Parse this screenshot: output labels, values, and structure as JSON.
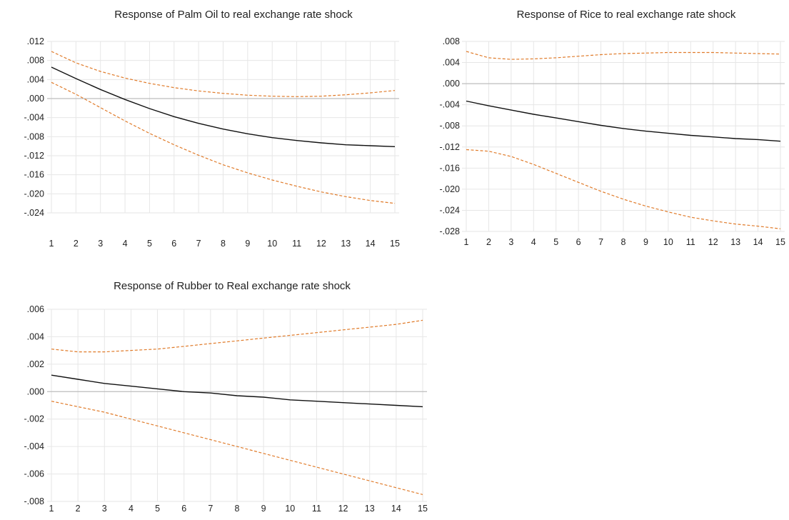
{
  "chart_data": [
    {
      "type": "line",
      "title": "Response of Palm Oil to real exchange rate shock",
      "x": [
        1,
        2,
        3,
        4,
        5,
        6,
        7,
        8,
        9,
        10,
        11,
        12,
        13,
        14,
        15
      ],
      "ylim": [
        -0.024,
        0.012
      ],
      "yticks": [
        ".012",
        ".008",
        ".004",
        ".000",
        "-.004",
        "-.008",
        "-.012",
        "-.016",
        "-.020",
        "-.024"
      ],
      "ytick_values": [
        0.012,
        0.008,
        0.004,
        0.0,
        -0.004,
        -0.008,
        -0.012,
        -0.016,
        -0.02,
        -0.024
      ],
      "series": [
        {
          "role": "response",
          "color": "#111111",
          "values": [
            0.0066,
            0.0042,
            0.0019,
            -0.0002,
            -0.0021,
            -0.0038,
            -0.0052,
            -0.0064,
            -0.0074,
            -0.0082,
            -0.0088,
            -0.0093,
            -0.0097,
            -0.0099,
            -0.0101
          ]
        },
        {
          "role": "upper",
          "color": "#e07b2a",
          "values": [
            0.0099,
            0.0075,
            0.0057,
            0.0043,
            0.0032,
            0.0023,
            0.0016,
            0.0011,
            0.0007,
            0.0005,
            0.0004,
            0.0005,
            0.0008,
            0.0012,
            0.0017
          ]
        },
        {
          "role": "lower",
          "color": "#e07b2a",
          "values": [
            0.0034,
            0.0009,
            -0.0019,
            -0.0047,
            -0.0073,
            -0.0097,
            -0.0119,
            -0.0139,
            -0.0156,
            -0.0171,
            -0.0184,
            -0.0196,
            -0.0206,
            -0.0214,
            -0.022
          ]
        }
      ]
    },
    {
      "type": "line",
      "title": "Response of Rice to real exchange rate shock",
      "x": [
        1,
        2,
        3,
        4,
        5,
        6,
        7,
        8,
        9,
        10,
        11,
        12,
        13,
        14,
        15
      ],
      "ylim": [
        -0.028,
        0.008
      ],
      "yticks": [
        ".008",
        ".004",
        ".000",
        "-.004",
        "-.008",
        "-.012",
        "-.016",
        "-.020",
        "-.024",
        "-.028"
      ],
      "ytick_values": [
        0.008,
        0.004,
        0.0,
        -0.004,
        -0.008,
        -0.012,
        -0.016,
        -0.02,
        -0.024,
        -0.028
      ],
      "series": [
        {
          "role": "response",
          "color": "#111111",
          "values": [
            -0.0033,
            -0.0042,
            -0.005,
            -0.0058,
            -0.0065,
            -0.0072,
            -0.0079,
            -0.0085,
            -0.009,
            -0.0094,
            -0.0098,
            -0.0101,
            -0.0104,
            -0.0106,
            -0.0109
          ]
        },
        {
          "role": "upper",
          "color": "#e07b2a",
          "values": [
            0.0061,
            0.0049,
            0.0046,
            0.0047,
            0.0049,
            0.0052,
            0.0055,
            0.0057,
            0.0058,
            0.0059,
            0.0059,
            0.0059,
            0.0058,
            0.0057,
            0.0056
          ]
        },
        {
          "role": "lower",
          "color": "#e07b2a",
          "values": [
            -0.0125,
            -0.0128,
            -0.0138,
            -0.0153,
            -0.017,
            -0.0187,
            -0.0204,
            -0.0219,
            -0.0232,
            -0.0243,
            -0.0253,
            -0.026,
            -0.0266,
            -0.027,
            -0.0275
          ]
        }
      ]
    },
    {
      "type": "line",
      "title": "Response of Rubber to Real exchange rate shock",
      "x": [
        1,
        2,
        3,
        4,
        5,
        6,
        7,
        8,
        9,
        10,
        11,
        12,
        13,
        14,
        15
      ],
      "ylim": [
        -0.008,
        0.006
      ],
      "yticks": [
        ".006",
        ".004",
        ".002",
        ".000",
        "-.002",
        "-.004",
        "-.006",
        "-.008"
      ],
      "ytick_values": [
        0.006,
        0.004,
        0.002,
        0.0,
        -0.002,
        -0.004,
        -0.006,
        -0.008
      ],
      "series": [
        {
          "role": "response",
          "color": "#111111",
          "values": [
            0.0012,
            0.0009,
            0.0006,
            0.0004,
            0.0002,
            0.0,
            -0.0001,
            -0.0003,
            -0.0004,
            -0.0006,
            -0.0007,
            -0.0008,
            -0.0009,
            -0.001,
            -0.0011
          ]
        },
        {
          "role": "upper",
          "color": "#e07b2a",
          "values": [
            0.0031,
            0.0029,
            0.0029,
            0.003,
            0.0031,
            0.0033,
            0.0035,
            0.0037,
            0.0039,
            0.0041,
            0.0043,
            0.0045,
            0.0047,
            0.0049,
            0.0052
          ]
        },
        {
          "role": "lower",
          "color": "#e07b2a",
          "values": [
            -0.0007,
            -0.0011,
            -0.0015,
            -0.002,
            -0.0025,
            -0.003,
            -0.0035,
            -0.004,
            -0.0045,
            -0.005,
            -0.0055,
            -0.006,
            -0.0065,
            -0.007,
            -0.0075
          ]
        }
      ]
    }
  ]
}
